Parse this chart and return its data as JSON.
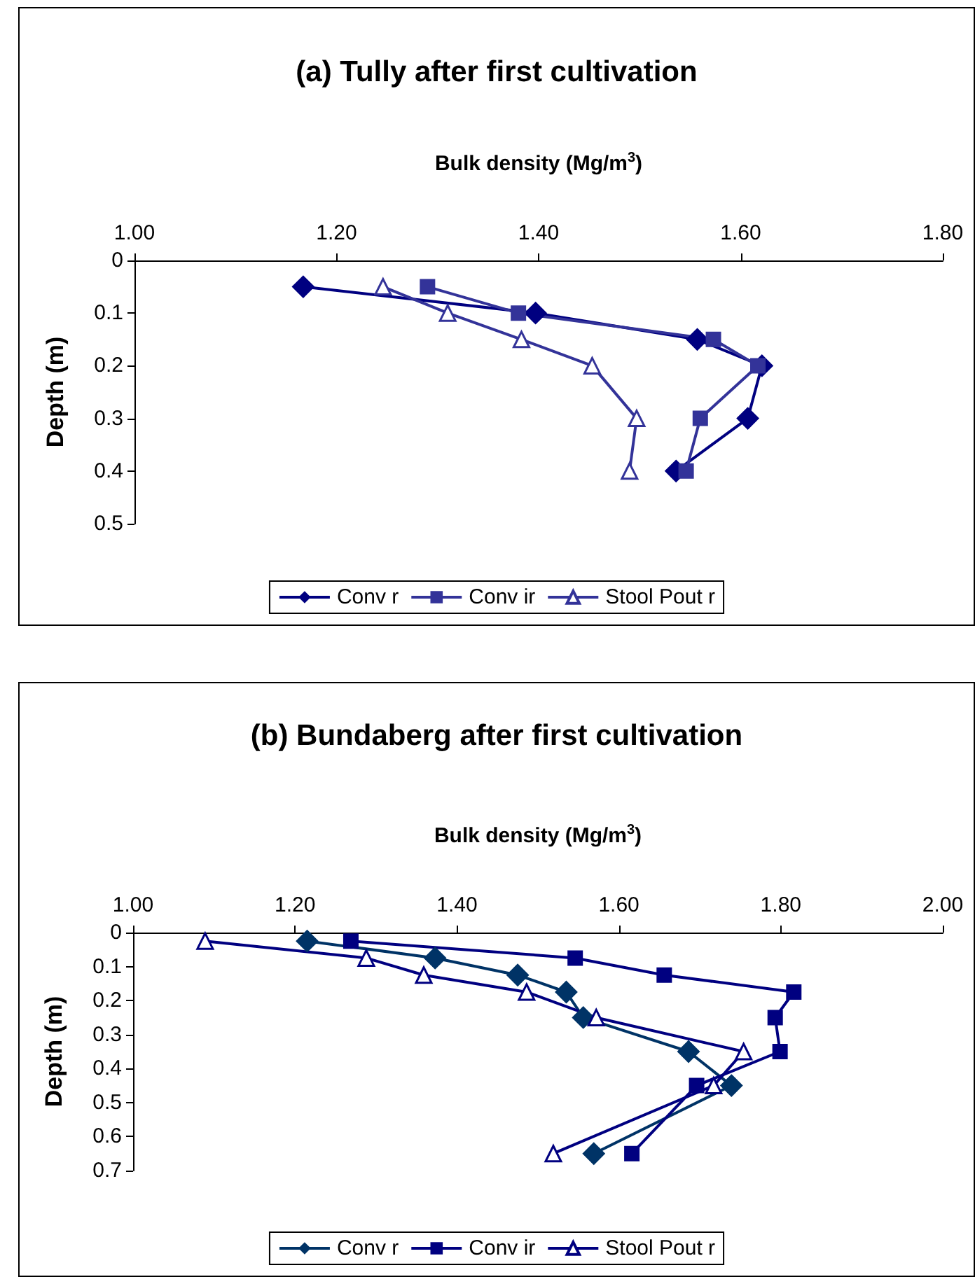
{
  "chart_data": [
    {
      "type": "line",
      "title": "(a) Tully after first cultivation",
      "xlabel": "Bulk density (Mg/m$^{3}$)",
      "ylabel": "Depth (m)",
      "xlim": [
        1.0,
        1.8
      ],
      "xticks": [
        {
          "value": 1.0,
          "label": "1.00"
        },
        {
          "value": 1.2,
          "label": "1.20"
        },
        {
          "value": 1.4,
          "label": "1.40"
        },
        {
          "value": 1.6,
          "label": "1.60"
        },
        {
          "value": 1.8,
          "label": "1.80"
        }
      ],
      "ylim": [
        0.5,
        0
      ],
      "yticks": [
        0,
        0.1,
        0.2,
        0.3,
        0.4,
        0.5
      ],
      "grid": false,
      "legend": "bottom",
      "line_style": "solid",
      "series": [
        {
          "name": "Conv r",
          "color": "#000080",
          "marker": "diamond",
          "x": [
            1.167,
            1.397,
            1.557,
            1.621,
            1.607,
            1.536
          ],
          "values": [
            0.05,
            0.1,
            0.15,
            0.2,
            0.3,
            0.4
          ]
        },
        {
          "name": "Conv ir",
          "color": "#333399",
          "marker": "square",
          "x": [
            1.29,
            1.38,
            1.573,
            1.617,
            1.56,
            1.546
          ],
          "values": [
            0.05,
            0.1,
            0.15,
            0.2,
            0.3,
            0.4
          ]
        },
        {
          "name": "Stool Pout r",
          "color": "#333399",
          "marker": "triangle",
          "x": [
            1.246,
            1.31,
            1.383,
            1.453,
            1.497,
            1.49
          ],
          "values": [
            0.05,
            0.1,
            0.15,
            0.2,
            0.3,
            0.4
          ]
        }
      ]
    },
    {
      "type": "line",
      "title": "(b) Bundaberg after first cultivation",
      "xlabel": "Bulk density (Mg/m$^{3}$)",
      "ylabel": "Depth (m)",
      "xlim": [
        1.0,
        2.0
      ],
      "xticks": [
        {
          "value": 1.0,
          "label": "1.00"
        },
        {
          "value": 1.2,
          "label": "1.20"
        },
        {
          "value": 1.4,
          "label": "1.40"
        },
        {
          "value": 1.6,
          "label": "1.60"
        },
        {
          "value": 1.8,
          "label": "1.80"
        },
        {
          "value": 2.0,
          "label": "2.00"
        }
      ],
      "ylim": [
        0.7,
        0
      ],
      "yticks": [
        0,
        0.1,
        0.2,
        0.3,
        0.4,
        0.5,
        0.6,
        0.7
      ],
      "grid": false,
      "legend": "bottom",
      "line_style": "solid",
      "series": [
        {
          "name": "Conv r",
          "color": "#003366",
          "marker": "diamond",
          "x": [
            1.215,
            1.373,
            1.475,
            1.535,
            1.556,
            1.686,
            1.739,
            1.569
          ],
          "values": [
            0.025,
            0.075,
            0.125,
            0.175,
            0.25,
            0.35,
            0.45,
            0.65
          ]
        },
        {
          "name": "Conv ir",
          "color": "#000080",
          "marker": "square",
          "x": [
            1.269,
            1.546,
            1.656,
            1.816,
            1.793,
            1.799,
            1.696,
            1.616
          ],
          "values": [
            0.025,
            0.075,
            0.125,
            0.175,
            0.25,
            0.35,
            0.45,
            0.65
          ]
        },
        {
          "name": "Stool Pout r",
          "color": "#000080",
          "marker": "triangle",
          "x": [
            1.089,
            1.288,
            1.359,
            1.486,
            1.572,
            1.754,
            1.717,
            1.519
          ],
          "values": [
            0.025,
            0.075,
            0.125,
            0.175,
            0.25,
            0.35,
            0.45,
            0.65
          ]
        }
      ]
    }
  ]
}
